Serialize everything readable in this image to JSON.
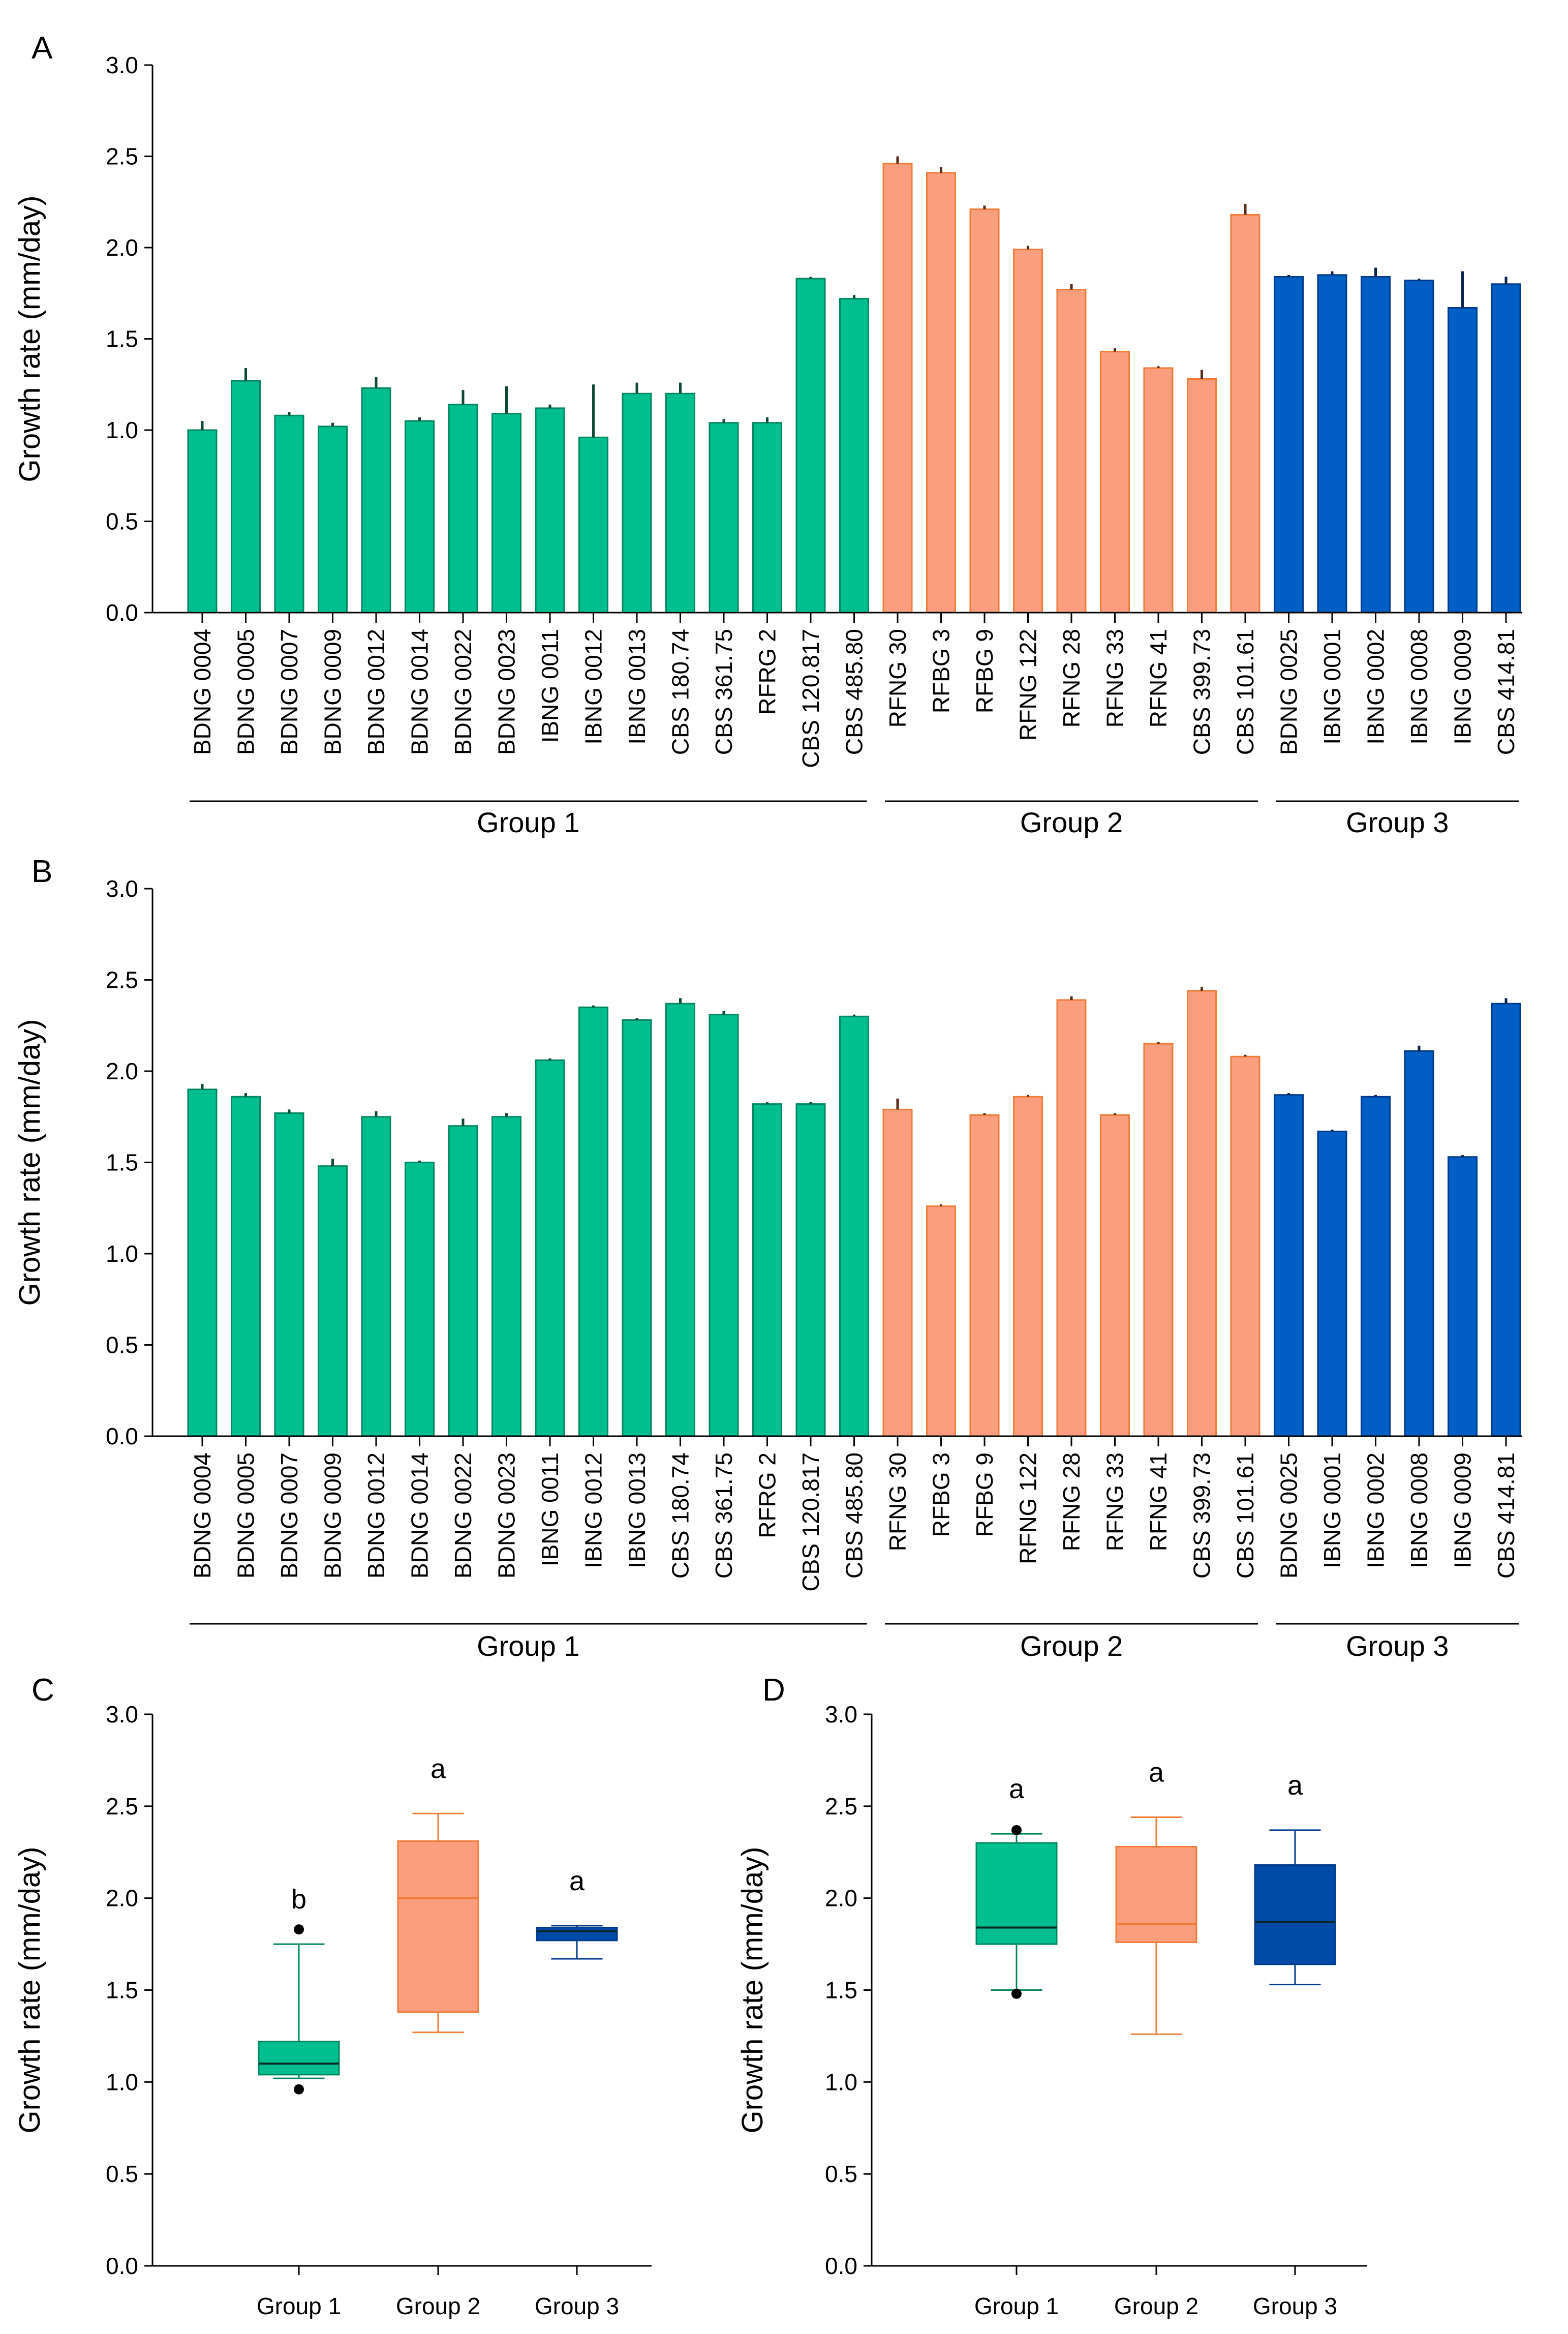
{
  "figure_type": "multi-panel growth rate figure",
  "colors": {
    "group1_fill": "#00BF8F",
    "group1_edge": "#00875F",
    "group2_fill": "#FA9E7E",
    "group2_edge": "#F07C38",
    "group3_fill": "#005FC4",
    "group3_edge": "#003A8C",
    "group3_box_fill": "#004BA8",
    "errorbar_g1": "#0B4A36",
    "errorbar_g2": "#5A2A14",
    "errorbar_g3": "#0A2450"
  },
  "chart_data": [
    {
      "panel": "A",
      "type": "bar",
      "ylabel": "Growth rate (mm/day)",
      "ylim": [
        0,
        3.0
      ],
      "yticks": [
        "0.0",
        "0.5",
        "1.0",
        "1.5",
        "2.0",
        "2.5",
        "3.0"
      ],
      "groups": [
        {
          "name": "Group 1",
          "strains": [
            "BDNG 0004",
            "BDNG 0005",
            "BDNG 0007",
            "BDNG 0009",
            "BDNG 0012",
            "BDNG 0014",
            "BDNG 0022",
            "BDNG 0023",
            "IBNG 0011",
            "IBNG 0012",
            "IBNG 0013",
            "CBS 180.74",
            "CBS 361.75",
            "RFRG 2",
            "CBS 120.817",
            "CBS 485.80"
          ],
          "values": [
            1.0,
            1.27,
            1.08,
            1.02,
            1.23,
            1.05,
            1.14,
            1.09,
            1.12,
            0.96,
            1.2,
            1.2,
            1.04,
            1.04,
            1.83,
            1.72
          ],
          "errors": [
            0.05,
            0.07,
            0.02,
            0.02,
            0.06,
            0.02,
            0.08,
            0.15,
            0.02,
            0.29,
            0.06,
            0.06,
            0.02,
            0.03,
            0.01,
            0.02
          ]
        },
        {
          "name": "Group 2",
          "strains": [
            "RFNG 30",
            "RFBG 3",
            "RFBG 9",
            "RFNG 122",
            "RFNG 28",
            "RFNG 33",
            "RFNG 41",
            "CBS 399.73",
            "CBS 101.61"
          ],
          "values": [
            2.46,
            2.41,
            2.21,
            1.99,
            1.77,
            1.43,
            1.34,
            1.28,
            2.18
          ],
          "errors": [
            0.04,
            0.03,
            0.02,
            0.02,
            0.03,
            0.02,
            0.01,
            0.05,
            0.06
          ]
        },
        {
          "name": "Group 3",
          "strains": [
            "BDNG 0025",
            "IBNG 0001",
            "IBNG 0002",
            "IBNG 0008",
            "IBNG 0009",
            "CBS 414.81"
          ],
          "values": [
            1.84,
            1.85,
            1.84,
            1.82,
            1.67,
            1.8
          ],
          "errors": [
            0.01,
            0.02,
            0.05,
            0.01,
            0.2,
            0.04
          ]
        }
      ]
    },
    {
      "panel": "B",
      "type": "bar",
      "ylabel": "Growth rate (mm/day)",
      "ylim": [
        0,
        3.0
      ],
      "yticks": [
        "0.0",
        "0.5",
        "1.0",
        "1.5",
        "2.0",
        "2.5",
        "3.0"
      ],
      "groups": [
        {
          "name": "Group 1",
          "strains": [
            "BDNG 0004",
            "BDNG 0005",
            "BDNG 0007",
            "BDNG 0009",
            "BDNG 0012",
            "BDNG 0014",
            "BDNG 0022",
            "BDNG 0023",
            "IBNG 0011",
            "IBNG 0012",
            "IBNG 0013",
            "CBS 180.74",
            "CBS 361.75",
            "RFRG 2",
            "CBS 120.817",
            "CBS 485.80"
          ],
          "values": [
            1.9,
            1.86,
            1.77,
            1.48,
            1.75,
            1.5,
            1.7,
            1.75,
            2.06,
            2.35,
            2.28,
            2.37,
            2.31,
            1.82,
            1.82,
            2.3
          ],
          "errors": [
            0.03,
            0.02,
            0.02,
            0.04,
            0.03,
            0.01,
            0.04,
            0.02,
            0.01,
            0.01,
            0.01,
            0.03,
            0.02,
            0.01,
            0.01,
            0.01
          ]
        },
        {
          "name": "Group 2",
          "strains": [
            "RFNG 30",
            "RFBG 3",
            "RFBG 9",
            "RFNG 122",
            "RFNG 28",
            "RFNG 33",
            "RFNG 41",
            "CBS 399.73",
            "CBS 101.61"
          ],
          "values": [
            1.79,
            1.26,
            1.76,
            1.86,
            2.39,
            1.76,
            2.15,
            2.44,
            2.08
          ],
          "errors": [
            0.06,
            0.01,
            0.01,
            0.01,
            0.02,
            0.01,
            0.01,
            0.02,
            0.01
          ]
        },
        {
          "name": "Group 3",
          "strains": [
            "BDNG 0025",
            "IBNG 0001",
            "IBNG 0002",
            "IBNG 0008",
            "IBNG 0009",
            "CBS 414.81"
          ],
          "values": [
            1.87,
            1.67,
            1.86,
            2.11,
            1.53,
            2.37
          ],
          "errors": [
            0.01,
            0.01,
            0.01,
            0.03,
            0.01,
            0.03
          ]
        }
      ]
    },
    {
      "panel": "C",
      "type": "box",
      "ylabel": "Growth rate (mm/day)",
      "ylim": [
        0,
        3.0
      ],
      "yticks": [
        "0.0",
        "0.5",
        "1.0",
        "1.5",
        "2.0",
        "2.5",
        "3.0"
      ],
      "boxes": [
        {
          "name": "Group 1",
          "q1": 1.04,
          "median": 1.1,
          "q3": 1.22,
          "whisker_low": 1.02,
          "whisker_high": 1.75,
          "outliers": [
            0.96,
            1.83
          ],
          "letter": "b"
        },
        {
          "name": "Group 2",
          "q1": 1.38,
          "median": 2.0,
          "q3": 2.31,
          "whisker_low": 1.27,
          "whisker_high": 2.46,
          "outliers": [],
          "letter": "a"
        },
        {
          "name": "Group 3",
          "q1": 1.77,
          "median": 1.82,
          "q3": 1.84,
          "whisker_low": 1.67,
          "whisker_high": 1.85,
          "outliers": [],
          "letter": "a"
        }
      ]
    },
    {
      "panel": "D",
      "type": "box",
      "ylabel": "Growth rate (mm/day)",
      "ylim": [
        0,
        3.0
      ],
      "yticks": [
        "0.0",
        "0.5",
        "1.0",
        "1.5",
        "2.0",
        "2.5",
        "3.0"
      ],
      "boxes": [
        {
          "name": "Group 1",
          "q1": 1.75,
          "median": 1.84,
          "q3": 2.3,
          "whisker_low": 1.5,
          "whisker_high": 2.35,
          "outliers": [
            1.48,
            2.37
          ],
          "letter": "a"
        },
        {
          "name": "Group 2",
          "q1": 1.76,
          "median": 1.86,
          "q3": 2.28,
          "whisker_low": 1.26,
          "whisker_high": 2.44,
          "outliers": [],
          "letter": "a"
        },
        {
          "name": "Group 3",
          "q1": 1.64,
          "median": 1.87,
          "q3": 2.18,
          "whisker_low": 1.53,
          "whisker_high": 2.37,
          "outliers": [],
          "letter": "a"
        }
      ]
    }
  ]
}
